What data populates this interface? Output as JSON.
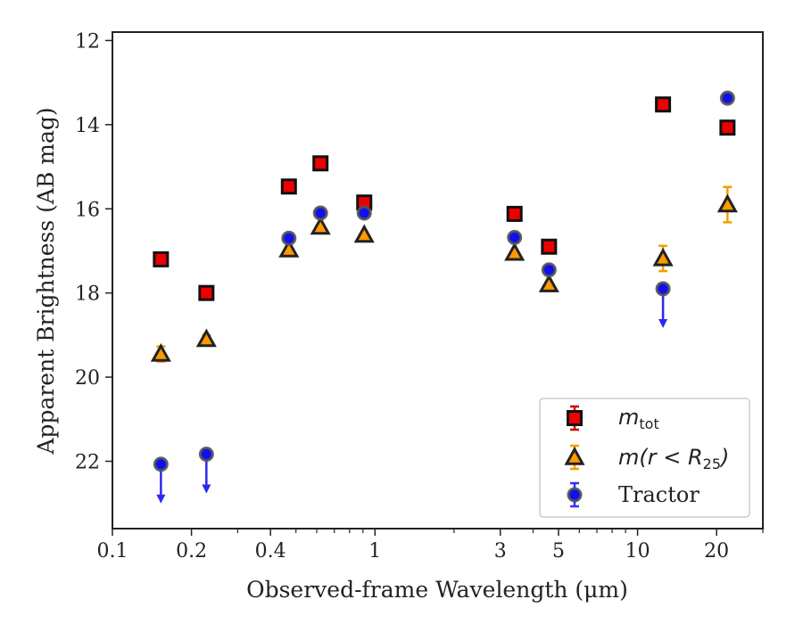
{
  "chart_data": {
    "type": "scatter",
    "xlabel": "Observed-frame Wavelength (μm)",
    "ylabel": "Apparent Brightness (AB mag)",
    "xscale": "log",
    "xlim": [
      0.1,
      30
    ],
    "ylim": [
      23.6,
      11.8
    ],
    "y_inverted": true,
    "xticks": [
      0.1,
      0.2,
      0.4,
      1,
      3,
      5,
      10,
      20
    ],
    "xtick_labels": [
      "0.1",
      "0.2",
      "0.4",
      "1",
      "3",
      "5",
      "10",
      "20"
    ],
    "yticks": [
      12,
      14,
      16,
      18,
      20,
      22
    ],
    "ytick_labels": [
      "12",
      "14",
      "16",
      "18",
      "20",
      "22"
    ],
    "grid": false,
    "legend": {
      "placement": "lower-right",
      "entries": [
        {
          "label": "m",
          "sub": "tot"
        },
        {
          "label": "m(r < R",
          "sub": "25",
          "suffix": ")"
        },
        {
          "label": "Tractor"
        }
      ]
    },
    "series": [
      {
        "marker": "square",
        "color": "#ee0000",
        "edge": "#111111",
        "errcolor": "#cc0000",
        "points": [
          {
            "x": 0.153,
            "y": 17.2
          },
          {
            "x": 0.228,
            "y": 18.0
          },
          {
            "x": 0.47,
            "y": 15.47
          },
          {
            "x": 0.62,
            "y": 14.92
          },
          {
            "x": 0.91,
            "y": 15.85
          },
          {
            "x": 3.4,
            "y": 16.12
          },
          {
            "x": 4.6,
            "y": 16.9
          },
          {
            "x": 12.5,
            "y": 13.52
          },
          {
            "x": 22.0,
            "y": 14.07
          }
        ]
      },
      {
        "marker": "triangle",
        "color": "#ff9900",
        "edge": "#222222",
        "errcolor": "#f0a000",
        "points": [
          {
            "x": 0.153,
            "y": 19.45,
            "err": 0.18
          },
          {
            "x": 0.228,
            "y": 19.1,
            "err": 0.1
          },
          {
            "x": 0.47,
            "y": 16.97
          },
          {
            "x": 0.62,
            "y": 16.43
          },
          {
            "x": 0.91,
            "y": 16.62
          },
          {
            "x": 3.4,
            "y": 17.05
          },
          {
            "x": 4.6,
            "y": 17.8,
            "err": 0.05
          },
          {
            "x": 12.5,
            "y": 17.18,
            "err": 0.3
          },
          {
            "x": 22.0,
            "y": 15.9,
            "err": 0.42
          }
        ]
      },
      {
        "marker": "circle",
        "color": "#1010ee",
        "edge": "#555555",
        "errcolor": "#3030ff",
        "points": [
          {
            "x": 0.153,
            "y": 22.07,
            "upper_limit": true
          },
          {
            "x": 0.228,
            "y": 21.83,
            "upper_limit": true
          },
          {
            "x": 0.47,
            "y": 16.7
          },
          {
            "x": 0.62,
            "y": 16.1
          },
          {
            "x": 0.91,
            "y": 16.1
          },
          {
            "x": 3.4,
            "y": 16.68
          },
          {
            "x": 4.6,
            "y": 17.45
          },
          {
            "x": 12.5,
            "y": 17.9,
            "upper_limit": true
          },
          {
            "x": 22.0,
            "y": 13.37
          }
        ]
      }
    ]
  }
}
